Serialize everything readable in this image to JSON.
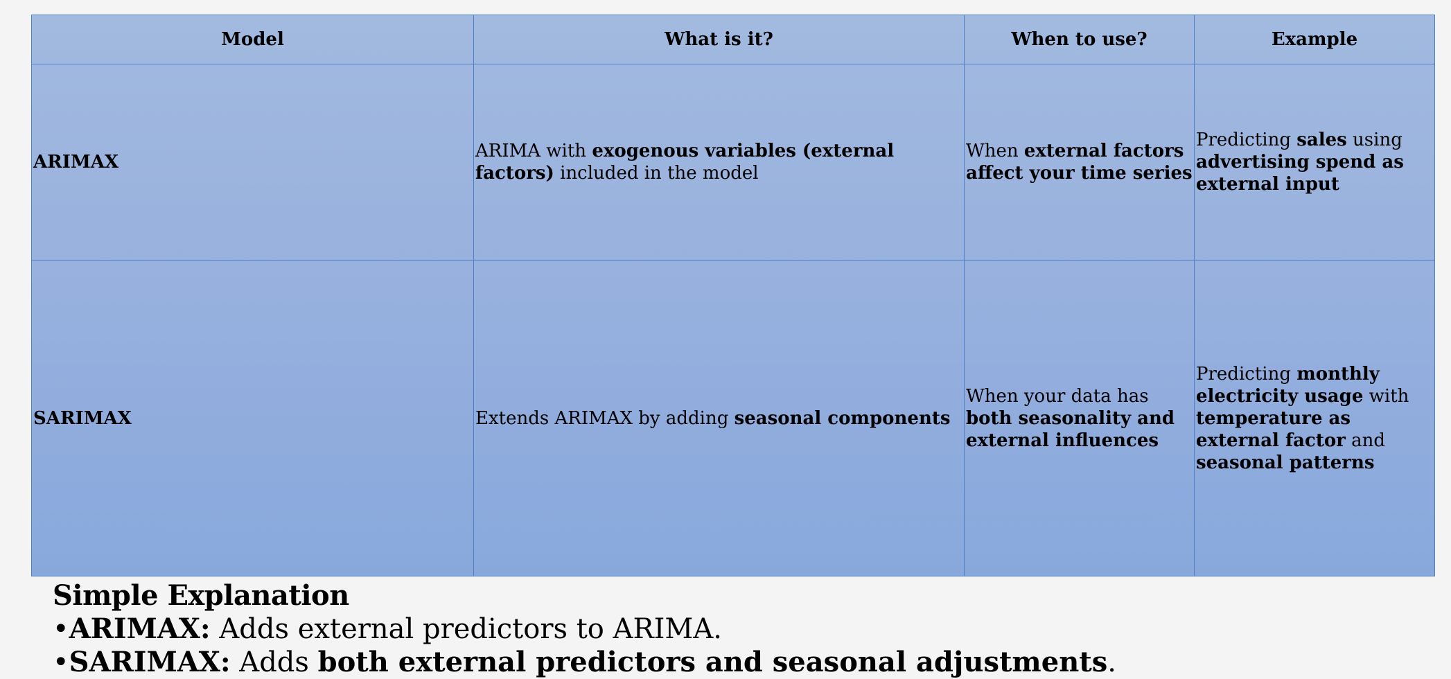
{
  "table": {
    "headers": [
      "Model",
      "What is it?",
      "When to use?",
      "Example"
    ],
    "rows": [
      {
        "model": "ARIMAX",
        "what": {
          "t1": "ARIMA with ",
          "b1": "exogenous variables (external factors)",
          "t2": " included in the model"
        },
        "when": {
          "t1": "When ",
          "b1": "external factors affect your time series"
        },
        "example": {
          "t1": "Predicting ",
          "b1": "sales",
          "t2": " using ",
          "b2": "advertising spend as external input"
        }
      },
      {
        "model": "SARIMAX",
        "what": {
          "t1": "Extends ARIMAX by adding ",
          "b1": "seasonal components"
        },
        "when": {
          "t1": "When your data has ",
          "b1": "both seasonality and external influences"
        },
        "example": {
          "t1": "Predicting ",
          "b1": "monthly electricity usage",
          "t2": " with ",
          "b2": "temperature as external factor",
          "t3": " and ",
          "b3": "seasonal patterns"
        }
      }
    ]
  },
  "explanation": {
    "heading": "Simple Explanation",
    "bullet": "•",
    "items": [
      {
        "term": "ARIMAX:",
        "t1": " Adds external predictors to ARIMA."
      },
      {
        "term": "SARIMAX:",
        "t1": " Adds ",
        "b1": "both external predictors and seasonal adjustments",
        "t2": "."
      }
    ]
  }
}
